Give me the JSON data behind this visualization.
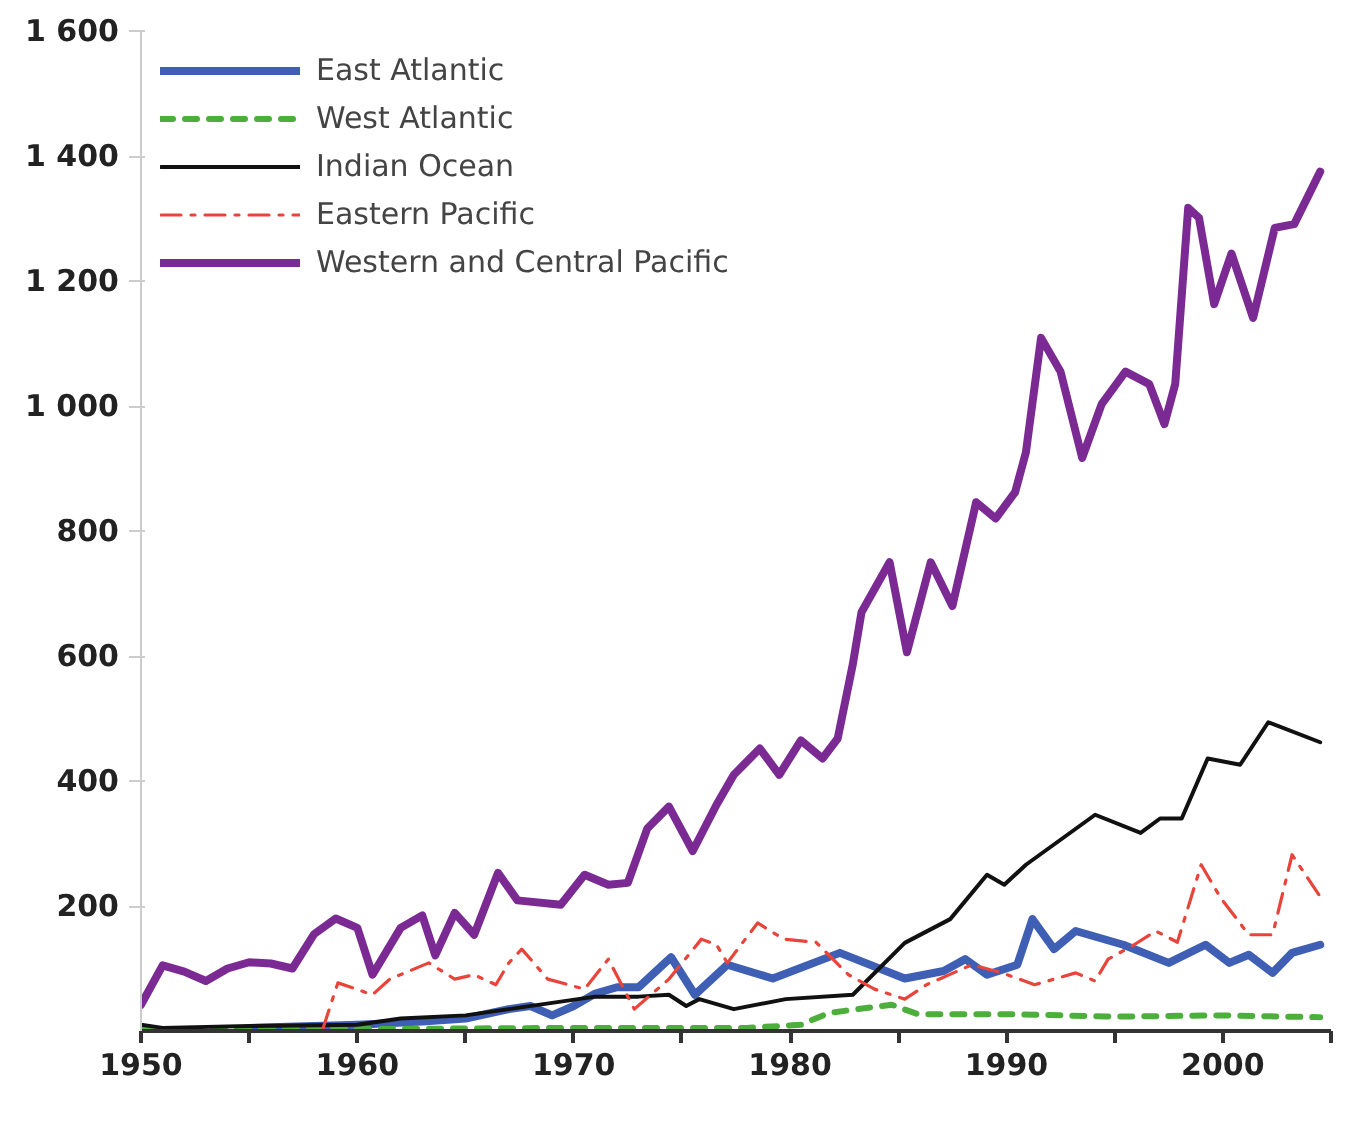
{
  "chart_data": {
    "type": "line",
    "xlim": [
      1950,
      2005
    ],
    "ylim": [
      0,
      1600
    ],
    "xticks": [
      1950,
      {
        "value": 1955,
        "label": null
      },
      1960,
      {
        "value": 1965,
        "label": null
      },
      1970,
      {
        "value": 1975,
        "label": null
      },
      1980,
      {
        "value": 1985,
        "label": null
      },
      1990,
      {
        "value": 1995,
        "label": null
      },
      2000,
      {
        "value": 2005,
        "label": null
      }
    ],
    "yticks": [
      200,
      400,
      600,
      800,
      {
        "value": 1000,
        "label": "1 000"
      },
      {
        "value": 1200,
        "label": "1 200"
      },
      {
        "value": 1400,
        "label": "1 400"
      },
      {
        "value": 1600,
        "label": "1 600"
      }
    ],
    "grid": false,
    "legend": "top left",
    "series": [
      {
        "name": "East Atlantic",
        "color": "#3f5fb5",
        "line_style": "solid",
        "x": [
          1955,
          1960,
          1963,
          1965,
          1967,
          1968,
          1969,
          1970,
          1971,
          1972,
          1973,
          1974.5,
          1975.6,
          1977.1,
          1979.2,
          1982.3,
          1985.3,
          1987.1,
          1988.1,
          1989.1,
          1990.5,
          1991.2,
          1992.2,
          1993.2,
          1995.4,
          1997.5,
          1999.2,
          2000.3,
          2001.2,
          2002.3,
          2003.2,
          2004.5
        ],
        "values": [
          5,
          10,
          15,
          20,
          35,
          40,
          25,
          40,
          60,
          70,
          70,
          118,
          58,
          106,
          84,
          125,
          84,
          96,
          115,
          90,
          106,
          179,
          131,
          160,
          138,
          109,
          138,
          109,
          122,
          93,
          125,
          138
        ]
      },
      {
        "name": "West Atlantic",
        "color": "#4caf3c",
        "line_style": "dashed",
        "x": [
          1950,
          1960,
          1970,
          1978,
          1980.5,
          1981.8,
          1984.7,
          1985.9,
          1990,
          1995,
          2000,
          2004.5
        ],
        "values": [
          3,
          3,
          5,
          5,
          10,
          29,
          42,
          27,
          27,
          23,
          25,
          22
        ]
      },
      {
        "name": "Indian Ocean",
        "color": "#111111",
        "line_style": "solid",
        "x": [
          1950,
          1951,
          1955,
          1960,
          1962,
          1965,
          1967,
          1969,
          1971,
          1973,
          1974.4,
          1975.2,
          1975.8,
          1977.4,
          1979.8,
          1982.9,
          1985.3,
          1987.4,
          1989.1,
          1989.9,
          1990.9,
          1994.1,
          1996.2,
          1997.1,
          1998.1,
          1999.3,
          2000.8,
          2002.1,
          2004.5
        ],
        "values": [
          10,
          5,
          8,
          10,
          20,
          25,
          35,
          45,
          55,
          55,
          58,
          40,
          51,
          35,
          51,
          58,
          141,
          179,
          250,
          234,
          266,
          346,
          317,
          340,
          340,
          436,
          426,
          494,
          462
        ]
      },
      {
        "name": "Eastern Pacific",
        "color": "#e8443a",
        "line_style": "dashdot",
        "x": [
          1958.4,
          1959.1,
          1960.7,
          1961.5,
          1963.3,
          1964.5,
          1965.4,
          1966.4,
          1967,
          1967.6,
          1968.8,
          1970.5,
          1971.6,
          1972.8,
          1974.4,
          1975.9,
          1976.6,
          1977.1,
          1978.5,
          1979.7,
          1981.2,
          1982.7,
          1983.9,
          1985.3,
          1986.3,
          1988.4,
          1989.8,
          1991.3,
          1993.2,
          1994.1,
          1994.7,
          1995.9,
          1996.9,
          1997.9,
          1999,
          1999.9,
          2001.2,
          2002.3,
          2003.2,
          2004.5
        ],
        "values": [
          3,
          77,
          58,
          83,
          109,
          83,
          90,
          74,
          109,
          131,
          83,
          67,
          115,
          35,
          83,
          147,
          138,
          109,
          173,
          147,
          142,
          90,
          67,
          51,
          74,
          106,
          93,
          74,
          93,
          80,
          115,
          138,
          160,
          142,
          266,
          213,
          154,
          154,
          282,
          215
        ]
      },
      {
        "name": "Western and Central Pacific",
        "color": "#7b2a94",
        "line_style": "solid",
        "x": [
          1950,
          1951,
          1952,
          1953,
          1954,
          1955,
          1956,
          1957,
          1958,
          1959,
          1960,
          1960.7,
          1962,
          1963,
          1963.6,
          1964.5,
          1965.4,
          1966.5,
          1967.4,
          1969.4,
          1970.5,
          1971.6,
          1972.5,
          1973.4,
          1974.4,
          1975.5,
          1976.6,
          1977.4,
          1978.6,
          1979.5,
          1980.5,
          1981.5,
          1982.2,
          1982.9,
          1983.3,
          1984.6,
          1985.4,
          1986.5,
          1987.5,
          1988.6,
          1989.5,
          1990.4,
          1990.9,
          1991.6,
          1992.5,
          1993.5,
          1994.4,
          1995.5,
          1996.6,
          1997.3,
          1997.8,
          1998.4,
          1998.9,
          1999.6,
          2000.4,
          2001.4,
          2002.4,
          2003.3,
          2004.5
        ],
        "values": [
          42,
          105,
          95,
          80,
          100,
          110,
          108,
          100,
          155,
          180,
          165,
          90,
          165,
          185,
          121,
          189,
          154,
          253,
          209,
          202,
          250,
          234,
          237,
          324,
          359,
          288,
          362,
          410,
          452,
          410,
          465,
          436,
          468,
          587,
          670,
          750,
          606,
          750,
          680,
          846,
          820,
          862,
          926,
          1109,
          1055,
          917,
          1003,
          1055,
          1035,
          971,
          1035,
          1317,
          1301,
          1163,
          1244,
          1141,
          1285,
          1291,
          1375
        ]
      }
    ]
  }
}
